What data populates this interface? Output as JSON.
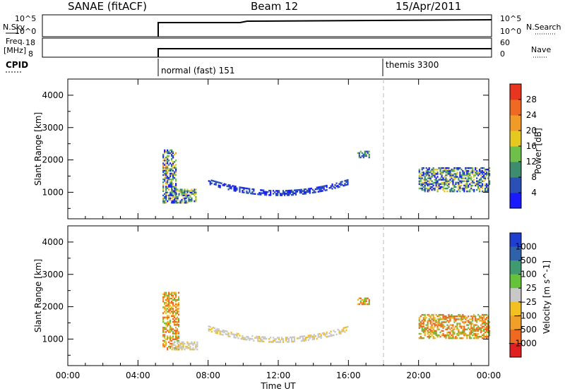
{
  "header": {
    "station": "SANAE (fitACF)",
    "beam": "Beam 12",
    "date": "15/Apr/2011"
  },
  "top_panels": {
    "nsky_label": "N.Sky",
    "nsearch_label": "N.Search",
    "nsky_ticks": [
      "10^5",
      "10^0"
    ],
    "nsearch_ticks": [
      "10^5",
      "10^0"
    ],
    "freq_label_1": "Freq.",
    "freq_label_2": "[MHz]",
    "freq_ticks": [
      "18",
      "8"
    ],
    "nave_label": "Nave",
    "nave_ticks": [
      "60",
      "0"
    ],
    "cpid_label": "CPID",
    "cpid_modes": [
      {
        "label": "normal (fast) 151",
        "start_hour": 5.25
      },
      {
        "label": "themis 3300",
        "start_hour": 18.0
      }
    ]
  },
  "axes": {
    "x_label": "Time UT",
    "x_ticks": [
      "00:00",
      "04:00",
      "08:00",
      "12:00",
      "16:00",
      "20:00",
      "00:00"
    ],
    "xlim_hours": [
      0,
      24
    ],
    "y_label": "Slant Range [km]",
    "y_ticks": [
      "1000",
      "2000",
      "3000",
      "4000"
    ],
    "ylim_km": [
      180,
      4500
    ]
  },
  "chart_data": [
    {
      "type": "heatmap",
      "quantity": "Power",
      "colorbar_label": "Power [dB]",
      "colorbar_ticks": [
        "4",
        "8",
        "12",
        "16",
        "20",
        "24",
        "28"
      ],
      "colorbar_colors": [
        "#1a1aff",
        "#2a4fb5",
        "#3d8c6e",
        "#6fc04a",
        "#e6c820",
        "#f09a28",
        "#ee6a22",
        "#e83520"
      ],
      "regions": [
        {
          "t0": 5.4,
          "t1": 6.2,
          "r0": 650,
          "r1": 2300,
          "level": "mixed-high"
        },
        {
          "t0": 5.9,
          "t1": 7.3,
          "r0": 650,
          "r1": 1100,
          "level": "mixed"
        },
        {
          "t0": 8.0,
          "t1": 16.0,
          "r0": 850,
          "r1": 1450,
          "level": "low"
        },
        {
          "t0": 16.5,
          "t1": 17.2,
          "r0": 2050,
          "r1": 2250,
          "level": "medium"
        },
        {
          "t0": 20.0,
          "t1": 24.0,
          "r0": 1000,
          "r1": 1750,
          "level": "mixed"
        }
      ]
    },
    {
      "type": "heatmap",
      "quantity": "Velocity",
      "colorbar_label": "Velocity [m s^-1]",
      "colorbar_ticks": [
        "1000",
        "500",
        "100",
        "25",
        "−25",
        "−100",
        "−500",
        "−1000"
      ],
      "colorbar_colors": [
        "#1f3fd0",
        "#2f62a8",
        "#3f9a70",
        "#66c23a",
        "#c8c8c8",
        "#f2c020",
        "#f0a028",
        "#ee6a20",
        "#e02020"
      ],
      "regions": [
        {
          "t0": 5.4,
          "t1": 6.3,
          "r0": 650,
          "r1": 2450,
          "level": "negative"
        },
        {
          "t0": 5.9,
          "t1": 7.4,
          "r0": 650,
          "r1": 900,
          "level": "near-zero"
        },
        {
          "t0": 8.0,
          "t1": 16.0,
          "r0": 900,
          "r1": 1400,
          "level": "near-zero"
        },
        {
          "t0": 16.5,
          "t1": 17.2,
          "r0": 2050,
          "r1": 2250,
          "level": "negative"
        },
        {
          "t0": 20.0,
          "t1": 24.0,
          "r0": 1000,
          "r1": 1750,
          "level": "negative"
        }
      ]
    }
  ]
}
